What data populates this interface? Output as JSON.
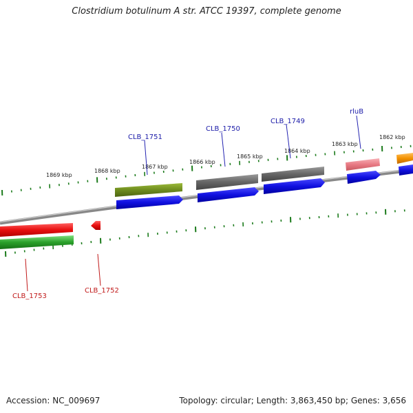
{
  "title": "Clostridium botulinum A str. ATCC 19397, complete genome",
  "footer": {
    "accession": "Accession: NC_009697",
    "topology": "Topology: circular; Length: 3,863,450 bp; Genes: 3,656"
  },
  "scale_labels": [
    "1869 kbp",
    "1868 kbp",
    "1867 kbp",
    "1866 kbp",
    "1865 kbp",
    "1864 kbp",
    "1863 kbp",
    "1862 kbp"
  ],
  "genes_top": [
    {
      "label": "CLB_1751",
      "color": "#6e8c1e"
    },
    {
      "label": "CLB_1750",
      "color": "#666666"
    },
    {
      "label": "CLB_1749",
      "color": "#666666"
    },
    {
      "label": "rluB",
      "color": "#e87a84"
    }
  ],
  "genes_bottom": [
    {
      "label": "CLB_1753",
      "color": "#e81010"
    },
    {
      "label": "CLB_1752",
      "color": "#e81010"
    }
  ],
  "colors": {
    "cds": "#1010e0",
    "backbone": "#888888",
    "tick": "#1a7a1a",
    "green_track": "#2aa02a",
    "orange": "#f39200"
  }
}
